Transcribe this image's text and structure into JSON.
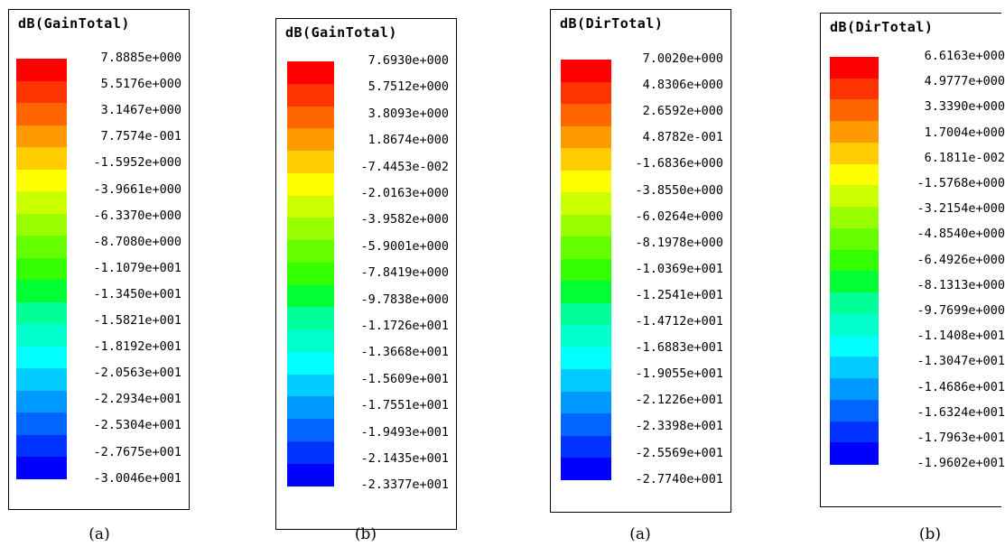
{
  "color_scale": [
    "#ff0000",
    "#ff3300",
    "#ff6600",
    "#ff9900",
    "#ffcc00",
    "#ffff00",
    "#ccff00",
    "#99ff00",
    "#66ff00",
    "#33ff00",
    "#00ff33",
    "#00ff99",
    "#00ffcc",
    "#00ffff",
    "#00ccff",
    "#0099ff",
    "#0066ff",
    "#0033ff",
    "#0000ff"
  ],
  "chart_data": [
    {
      "type": "heatmap",
      "title": "dB(GainTotal)",
      "caption": "(a)",
      "tick_labels": [
        "7.8885e+000",
        "5.5176e+000",
        "3.1467e+000",
        "7.7574e-001",
        "-1.5952e+000",
        "-3.9661e+000",
        "-6.3370e+000",
        "-8.7080e+000",
        "-1.1079e+001",
        "-1.3450e+001",
        "-1.5821e+001",
        "-1.8192e+001",
        "-2.0563e+001",
        "-2.2934e+001",
        "-2.5304e+001",
        "-2.7675e+001",
        "-3.0046e+001"
      ],
      "values": [
        7.8885,
        5.5176,
        3.1467,
        0.77574,
        -1.5952,
        -3.9661,
        -6.337,
        -8.708,
        -11.079,
        -13.45,
        -15.821,
        -18.192,
        -20.563,
        -22.934,
        -25.304,
        -27.675,
        -30.046
      ]
    },
    {
      "type": "heatmap",
      "title": "dB(GainTotal)",
      "caption": "(b)",
      "tick_labels": [
        "7.6930e+000",
        "5.7512e+000",
        "3.8093e+000",
        "1.8674e+000",
        "-7.4453e-002",
        "-2.0163e+000",
        "-3.9582e+000",
        "-5.9001e+000",
        "-7.8419e+000",
        "-9.7838e+000",
        "-1.1726e+001",
        "-1.3668e+001",
        "-1.5609e+001",
        "-1.7551e+001",
        "-1.9493e+001",
        "-2.1435e+001",
        "-2.3377e+001"
      ],
      "values": [
        7.693,
        5.7512,
        3.8093,
        1.8674,
        -0.074453,
        -2.0163,
        -3.9582,
        -5.9001,
        -7.8419,
        -9.7838,
        -11.726,
        -13.668,
        -15.609,
        -17.551,
        -19.493,
        -21.435,
        -23.377
      ]
    },
    {
      "type": "heatmap",
      "title": "dB(DirTotal)",
      "caption": "(a)",
      "tick_labels": [
        "7.0020e+000",
        "4.8306e+000",
        "2.6592e+000",
        "4.8782e-001",
        "-1.6836e+000",
        "-3.8550e+000",
        "-6.0264e+000",
        "-8.1978e+000",
        "-1.0369e+001",
        "-1.2541e+001",
        "-1.4712e+001",
        "-1.6883e+001",
        "-1.9055e+001",
        "-2.1226e+001",
        "-2.3398e+001",
        "-2.5569e+001",
        "-2.7740e+001"
      ],
      "values": [
        7.002,
        4.8306,
        2.6592,
        0.48782,
        -1.6836,
        -3.855,
        -6.0264,
        -8.1978,
        -10.369,
        -12.541,
        -14.712,
        -16.883,
        -19.055,
        -21.226,
        -23.398,
        -25.569,
        -27.74
      ]
    },
    {
      "type": "heatmap",
      "title": "dB(DirTotal)",
      "caption": "(b)",
      "tick_labels": [
        "6.6163e+000",
        "4.9777e+000",
        "3.3390e+000",
        "1.7004e+000",
        "6.1811e-002",
        "-1.5768e+000",
        "-3.2154e+000",
        "-4.8540e+000",
        "-6.4926e+000",
        "-8.1313e+000",
        "-9.7699e+000",
        "-1.1408e+001",
        "-1.3047e+001",
        "-1.4686e+001",
        "-1.6324e+001",
        "-1.7963e+001",
        "-1.9602e+001"
      ],
      "values": [
        6.6163,
        4.9777,
        3.339,
        1.7004,
        0.061811,
        -1.5768,
        -3.2154,
        -4.854,
        -6.4926,
        -8.1313,
        -9.7699,
        -11.408,
        -13.047,
        -14.686,
        -16.324,
        -17.963,
        -19.602
      ]
    }
  ]
}
